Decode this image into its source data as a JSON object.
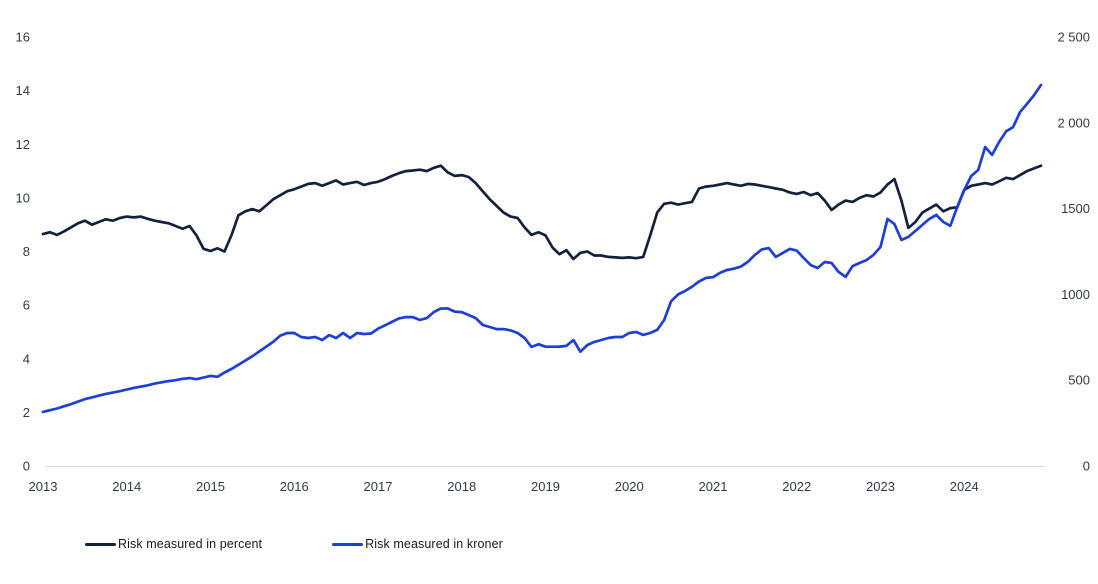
{
  "chart_data": {
    "type": "line",
    "title": "",
    "x_tick_labels": [
      "2013",
      "2014",
      "2015",
      "2016",
      "2017",
      "2018",
      "2019",
      "2020",
      "2021",
      "2022",
      "2023",
      "2024"
    ],
    "left_axis": {
      "min": 0,
      "max": 16,
      "tick_labels": [
        "16",
        "14",
        "12",
        "10",
        "8",
        "6",
        "4",
        "2",
        "0"
      ],
      "tick_values": [
        16,
        14,
        12,
        10,
        8,
        6,
        4,
        2,
        0
      ]
    },
    "right_axis": {
      "min": 0,
      "max": 2500,
      "tick_labels": [
        "2 500",
        "2 000",
        "1500",
        "1000",
        "500",
        "0"
      ],
      "tick_values": [
        2500,
        2000,
        1500,
        1000,
        500,
        0
      ]
    },
    "grid": false,
    "legend_position": "bottom-left",
    "x_start": "2013-01",
    "x_frequency": "monthly",
    "series": [
      {
        "name": "Risk measured in percent",
        "axis": "left",
        "color": "#14213d",
        "values": [
          8.65,
          8.72,
          8.62,
          8.75,
          8.9,
          9.05,
          9.15,
          9.0,
          9.1,
          9.2,
          9.15,
          9.25,
          9.3,
          9.27,
          9.3,
          9.22,
          9.15,
          9.1,
          9.05,
          8.95,
          8.85,
          8.95,
          8.6,
          8.1,
          8.02,
          8.12,
          8.0,
          8.6,
          9.35,
          9.5,
          9.58,
          9.5,
          9.72,
          9.95,
          10.1,
          10.25,
          10.32,
          10.42,
          10.52,
          10.55,
          10.45,
          10.55,
          10.65,
          10.5,
          10.55,
          10.6,
          10.48,
          10.55,
          10.6,
          10.7,
          10.82,
          10.92,
          11.0,
          11.02,
          11.05,
          11.0,
          11.12,
          11.2,
          10.95,
          10.82,
          10.85,
          10.78,
          10.55,
          10.25,
          9.95,
          9.7,
          9.45,
          9.3,
          9.25,
          8.9,
          8.62,
          8.72,
          8.6,
          8.15,
          7.9,
          8.05,
          7.72,
          7.95,
          8.0,
          7.85,
          7.85,
          7.8,
          7.78,
          7.76,
          7.78,
          7.75,
          7.8,
          8.6,
          9.45,
          9.78,
          9.82,
          9.75,
          9.8,
          9.85,
          10.35,
          10.42,
          10.45,
          10.5,
          10.55,
          10.5,
          10.45,
          10.52,
          10.5,
          10.45,
          10.4,
          10.35,
          10.3,
          10.2,
          10.15,
          10.22,
          10.1,
          10.18,
          9.9,
          9.55,
          9.75,
          9.9,
          9.85,
          10.0,
          10.1,
          10.05,
          10.2,
          10.5,
          10.7,
          9.9,
          8.88,
          9.1,
          9.45,
          9.6,
          9.75,
          9.5,
          9.62,
          9.65,
          10.3,
          10.45,
          10.5,
          10.55,
          10.5,
          10.62,
          10.75,
          10.7,
          10.85,
          11.0,
          11.1,
          11.2
        ]
      },
      {
        "name": "Risk measured in kroner",
        "axis": "right",
        "color": "#1e3fd6",
        "values": [
          315,
          325,
          335,
          348,
          360,
          375,
          390,
          400,
          410,
          420,
          428,
          436,
          445,
          455,
          462,
          470,
          480,
          488,
          495,
          500,
          508,
          512,
          506,
          515,
          525,
          520,
          545,
          565,
          590,
          615,
          640,
          668,
          696,
          724,
          760,
          775,
          775,
          752,
          746,
          752,
          734,
          763,
          746,
          775,
          746,
          775,
          769,
          772,
          800,
          820,
          840,
          860,
          868,
          868,
          851,
          862,
          897,
          918,
          918,
          900,
          897,
          880,
          862,
          822,
          810,
          798,
          798,
          790,
          775,
          746,
          694,
          710,
          695,
          695,
          696,
          700,
          734,
          666,
          705,
          723,
          734,
          746,
          752,
          752,
          775,
          781,
          764,
          775,
          793,
          850,
          960,
          1000,
          1020,
          1045,
          1075,
          1096,
          1100,
          1125,
          1142,
          1150,
          1162,
          1190,
          1230,
          1262,
          1270,
          1218,
          1242,
          1265,
          1255,
          1212,
          1171,
          1154,
          1189,
          1183,
          1131,
          1102,
          1165,
          1183,
          1200,
          1230,
          1276,
          1440,
          1410,
          1317,
          1335,
          1370,
          1405,
          1440,
          1463,
          1422,
          1400,
          1510,
          1608,
          1690,
          1725,
          1859,
          1813,
          1888,
          1950,
          1975,
          2063,
          2110,
          2160,
          2220
        ]
      }
    ]
  },
  "legend": {
    "percent_label": "Risk measured in percent",
    "kroner_label": "Risk measured in kroner"
  },
  "colors": {
    "percent_line": "#14213d",
    "kroner_line": "#1e3fd6",
    "axis_line": "#d8d8d8",
    "tick_text": "#333a46",
    "background": "#ffffff"
  }
}
